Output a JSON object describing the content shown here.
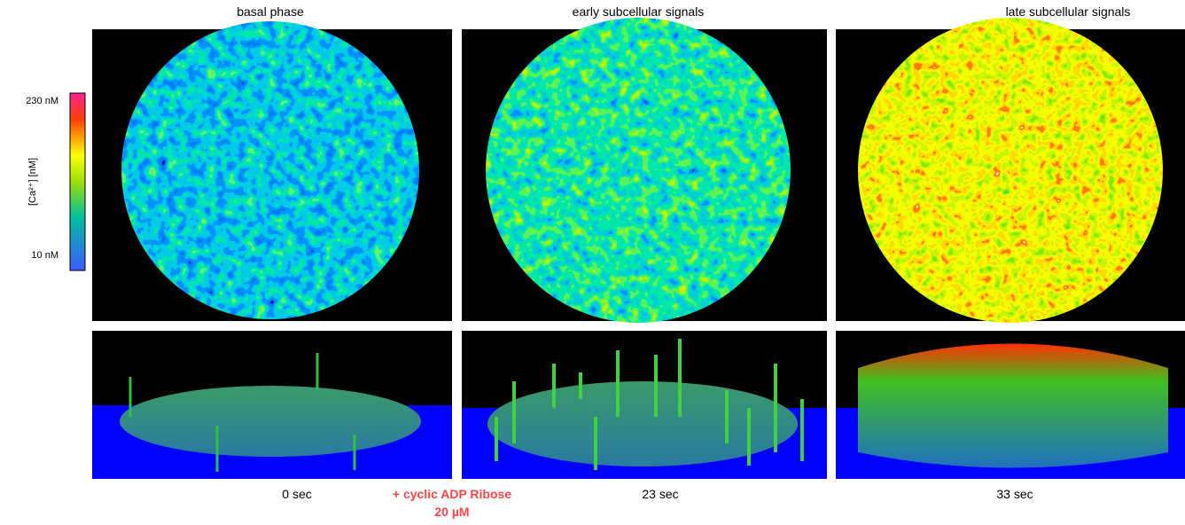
{
  "panels": [
    {
      "title": "basal phase",
      "time": "0 sec"
    },
    {
      "title": "early subcellular signals",
      "time": "23 sec"
    },
    {
      "title": "late subcellular signals",
      "time": "33 sec"
    }
  ],
  "colorbar": {
    "label": "[Ca²⁺] [nM]",
    "max_label": "230 nM",
    "min_label": "10 nM"
  },
  "annotation": {
    "line1": "+ cyclic ADP Ribose",
    "line2": "20 µM"
  }
}
